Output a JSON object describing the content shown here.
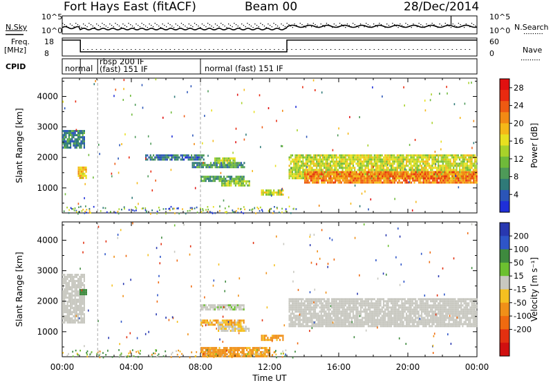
{
  "header": {
    "station": "Fort Hays East (fitACF)",
    "beam": "Beam 00",
    "date": "28/Dec/2014"
  },
  "aux_panels": {
    "nsky_label": "N.Sky",
    "nsearch_label": "N.Search",
    "nsky_ticks": [
      "10^5",
      "10^0"
    ],
    "nsearch_ticks": [
      "10^5",
      "10^0"
    ],
    "freq_label": "Freq.",
    "freq_unit": "[MHz]",
    "freq_ticks": [
      "18",
      "8"
    ],
    "nave_label": "Nave",
    "nave_ticks": [
      "60",
      "0"
    ],
    "cpid_label": "CPID",
    "cpid_segments": [
      "normal",
      "rbsp 200 IF",
      "(fast) 151 IF",
      "normal (fast) 151 IF"
    ]
  },
  "chart_data": [
    {
      "type": "heatmap",
      "name": "power",
      "ylabel": "Slant Range [km]",
      "xlabel": "Time UT",
      "x_ticks": [
        "00:00",
        "04:00",
        "08:00",
        "12:00",
        "16:00",
        "20:00",
        "00:00"
      ],
      "x_range_hours": [
        0,
        24
      ],
      "y_ticks": [
        1000,
        2000,
        3000,
        4000
      ],
      "y_range_km": [
        180,
        4600
      ],
      "colorbar": {
        "label": "Power [dB]",
        "ticks": [
          "4",
          "8",
          "12",
          "16",
          "20",
          "24",
          "28"
        ],
        "range": [
          0,
          30
        ],
        "colors": [
          "#1f2fd8",
          "#2b55b8",
          "#2f7a78",
          "#4e9a58",
          "#6fba3a",
          "#a8d22a",
          "#e8e020",
          "#f5b818",
          "#f28a14",
          "#ee5a12",
          "#e82a10",
          "#e01010"
        ]
      },
      "regions": [
        {
          "t": [
            0.0,
            1.3
          ],
          "range": [
            2300,
            2900
          ],
          "value": 7
        },
        {
          "t": [
            0.9,
            1.4
          ],
          "range": [
            1300,
            1700
          ],
          "value": 18
        },
        {
          "t": [
            4.8,
            8.2
          ],
          "range": [
            1900,
            2100
          ],
          "value": 6
        },
        {
          "t": [
            7.5,
            10.5
          ],
          "range": [
            1700,
            1850
          ],
          "value": 8
        },
        {
          "t": [
            8.8,
            10.0
          ],
          "range": [
            1800,
            2000
          ],
          "value": 14
        },
        {
          "t": [
            8.0,
            10.5
          ],
          "range": [
            1200,
            1400
          ],
          "value": 9
        },
        {
          "t": [
            9.2,
            10.8
          ],
          "range": [
            1050,
            1250
          ],
          "value": 13
        },
        {
          "t": [
            11.5,
            12.8
          ],
          "range": [
            750,
            950
          ],
          "value": 15
        },
        {
          "t": [
            13.1,
            24.0
          ],
          "range": [
            1300,
            2100
          ],
          "value": 15
        },
        {
          "t": [
            14.0,
            24.0
          ],
          "range": [
            1200,
            1550
          ],
          "value": 22
        }
      ]
    },
    {
      "type": "heatmap",
      "name": "velocity",
      "ylabel": "Slant Range [km]",
      "xlabel": "Time UT",
      "x_ticks": [
        "00:00",
        "04:00",
        "08:00",
        "12:00",
        "16:00",
        "20:00",
        "00:00"
      ],
      "x_range_hours": [
        0,
        24
      ],
      "y_ticks": [
        1000,
        2000,
        3000,
        4000
      ],
      "y_range_km": [
        180,
        4600
      ],
      "colorbar": {
        "label": "Velocity [m s⁻¹]",
        "ticks": [
          "200",
          "100",
          "50",
          "15",
          "-15",
          "-50",
          "-100",
          "-200"
        ],
        "colors": [
          "#2838b0",
          "#2e55c8",
          "#3e8a3e",
          "#6cc030",
          "#c8c8c0",
          "#f5c020",
          "#f09018",
          "#ef6a10",
          "#e23010",
          "#d01010"
        ]
      },
      "regions": [
        {
          "t": [
            0.0,
            1.3
          ],
          "range": [
            1300,
            2900
          ],
          "value": 0
        },
        {
          "t": [
            1.0,
            1.4
          ],
          "range": [
            2200,
            2400
          ],
          "value": 60
        },
        {
          "t": [
            8.0,
            10.5
          ],
          "range": [
            1700,
            1900
          ],
          "value": 5
        },
        {
          "t": [
            8.0,
            10.5
          ],
          "range": [
            1200,
            1400
          ],
          "value": -25
        },
        {
          "t": [
            9.0,
            10.8
          ],
          "range": [
            1000,
            1200
          ],
          "value": -10
        },
        {
          "t": [
            11.5,
            12.8
          ],
          "range": [
            700,
            900
          ],
          "value": -40
        },
        {
          "t": [
            8.0,
            12.0
          ],
          "range": [
            200,
            500
          ],
          "value": -40
        },
        {
          "t": [
            13.1,
            24.0
          ],
          "range": [
            1200,
            2100
          ],
          "value": 0
        }
      ]
    }
  ],
  "axis_ticks": {
    "x": [
      "00:00",
      "04:00",
      "08:00",
      "12:00",
      "16:00",
      "20:00",
      "00:00"
    ],
    "xlabel": "Time UT"
  }
}
